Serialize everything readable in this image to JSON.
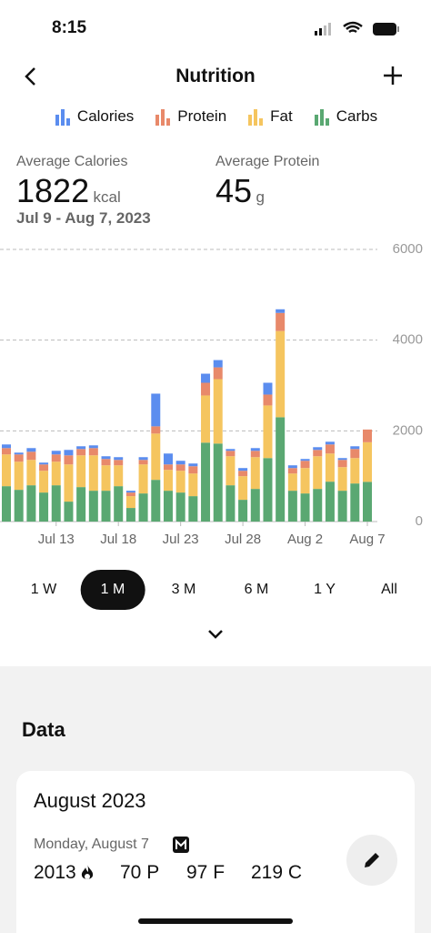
{
  "status_bar": {
    "time": "8:15"
  },
  "header": {
    "title": "Nutrition"
  },
  "summary": {
    "average_calories": {
      "label": "Average Calories",
      "value": 1822,
      "unit": "kcal"
    },
    "average_protein": {
      "label": "Average Protein",
      "value": 45,
      "unit": "g"
    },
    "date_range": "Jul 9 - Aug 7, 2023"
  },
  "chart_data": {
    "type": "stacked_bar",
    "categories": [
      null,
      null,
      null,
      null,
      "Jul 13",
      null,
      null,
      null,
      null,
      "Jul 18",
      null,
      null,
      null,
      null,
      "Jul 23",
      null,
      null,
      null,
      null,
      "Jul 28",
      null,
      null,
      null,
      null,
      "Aug 2",
      null,
      null,
      null,
      null,
      "Aug 7"
    ],
    "series": [
      {
        "name": "Calories",
        "color": "#5b8def",
        "values": [
          80,
          40,
          80,
          40,
          80,
          120,
          60,
          60,
          60,
          60,
          40,
          60,
          720,
          240,
          80,
          60,
          200,
          160,
          40,
          60,
          60,
          260,
          80,
          60,
          40,
          60,
          60,
          40,
          60,
          0
        ]
      },
      {
        "name": "Protein",
        "color": "#e8896a",
        "values": [
          140,
          160,
          180,
          140,
          160,
          200,
          140,
          160,
          140,
          120,
          80,
          100,
          160,
          120,
          140,
          160,
          280,
          260,
          120,
          120,
          140,
          240,
          400,
          120,
          160,
          140,
          200,
          160,
          200,
          280
        ]
      },
      {
        "name": "Fat",
        "color": "#f5c55f",
        "values": [
          700,
          620,
          560,
          480,
          520,
          820,
          700,
          780,
          560,
          460,
          260,
          640,
          1020,
          460,
          480,
          500,
          1040,
          1420,
          640,
          520,
          700,
          1160,
          1900,
          380,
          560,
          720,
          620,
          520,
          560,
          873
        ]
      },
      {
        "name": "Carbs",
        "color": "#5aa872",
        "values": [
          780,
          700,
          800,
          640,
          800,
          440,
          760,
          680,
          680,
          780,
          300,
          620,
          920,
          680,
          640,
          560,
          1740,
          1720,
          800,
          480,
          720,
          1400,
          2300,
          680,
          620,
          720,
          880,
          680,
          840,
          876
        ]
      }
    ],
    "ylim": [
      0,
      6000
    ],
    "yticks": [
      0,
      2000,
      4000,
      6000
    ],
    "grid": true
  },
  "range_buttons": {
    "options": [
      "1 W",
      "1 M",
      "3 M",
      "6 M",
      "1 Y",
      "All"
    ],
    "selected_index": 1
  },
  "data_section": {
    "title": "Data",
    "month": "August 2023",
    "entries": [
      {
        "date": "Monday, August 7",
        "calories": 2013,
        "protein": "70 P",
        "fat": "97 F",
        "carbs": "219 C"
      }
    ]
  }
}
